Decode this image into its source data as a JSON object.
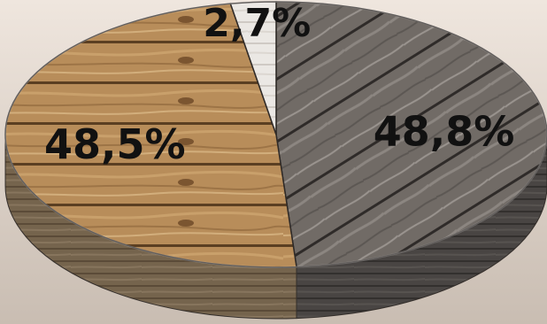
{
  "chart_data": {
    "type": "pie",
    "style": "3d wooden pie",
    "slices": [
      {
        "value": 48.8,
        "label": "48,8%",
        "color": "#6f6a66",
        "texture": "grey-wood"
      },
      {
        "value": 48.5,
        "label": "48,5%",
        "color": "#b38a58",
        "texture": "natural-wood"
      },
      {
        "value": 2.7,
        "label": "2,7%",
        "color": "#e9e6e2",
        "texture": "whitewashed-wood"
      }
    ],
    "start_angle_deg": -90,
    "direction": "clockwise",
    "title": "",
    "legend": "none"
  },
  "colors": {
    "background_top": "#efe6de",
    "background_bottom": "#c9bdb2",
    "label": "#111111"
  }
}
